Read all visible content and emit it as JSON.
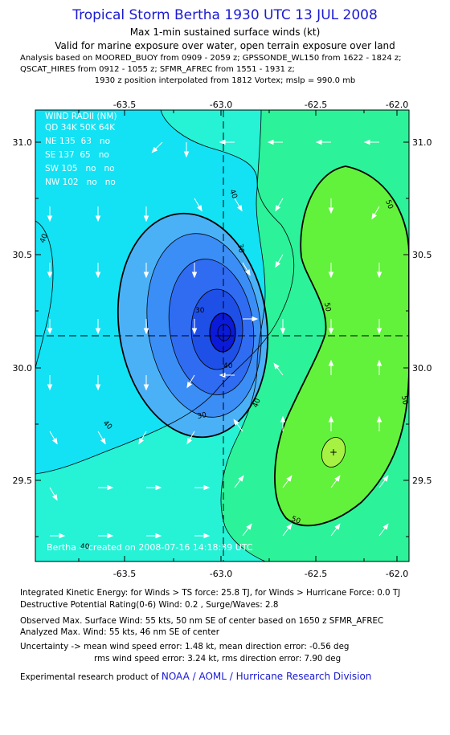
{
  "header": {
    "title": "Tropical Storm Bertha 1930 UTC 13 JUL 2008",
    "subtitle1": "Max 1-min sustained surface winds (kt)",
    "subtitle2": "Valid for marine exposure over water, open terrain exposure over land",
    "analysis1": "Analysis based on  MOORED_BUOY from 0909 - 2059 z;  GPSSONDE_WL150 from 1622 - 1824 z;",
    "analysis2": "QSCAT_HIRES from 0912 - 1055 z;  SFMR_AFREC from 1551 - 1931 z;",
    "analysis3": "1930 z position interpolated from 1812 Vortex; mslp = 990.0 mb"
  },
  "map": {
    "lon_ticks": [
      "-63.5",
      "-63.0",
      "-62.5",
      "-62.0"
    ],
    "lat_ticks": [
      "31.0",
      "30.5",
      "30.0",
      "29.5"
    ],
    "center": {
      "lon": -62.97,
      "lat": 30.15
    },
    "max_wind_mark": {
      "lon": -62.36,
      "lat": 29.62
    },
    "contour_labels": [
      "40",
      "30",
      "40",
      "30",
      "40",
      "50",
      "50",
      "50",
      "30",
      "40",
      "50",
      "40",
      "40"
    ],
    "colors": {
      "lt20": "#0a1ad8",
      "b20_25": "#2f6cf2",
      "b25_30": "#3b8ef5",
      "b30_35": "#4bb1f7",
      "b35_40": "#12e2f4",
      "b40_45": "#26f2d6",
      "b45_50": "#2cf29a",
      "b50_55": "#62f23c",
      "b55_60": "#a6f242"
    },
    "wind_radii": {
      "title": "WIND RADII (NM)",
      "header": "QD 34K 50K 64K",
      "rows": [
        "NE 135  63   no",
        "SE 137  65   no",
        "SW 105   no   no",
        "NW 102   no   no"
      ]
    },
    "credit": "Bertha -- created on 2008-07-16 14:18:39 UTC"
  },
  "footer": {
    "ike": "Integrated Kinetic Energy:  for Winds > TS force: 25.8 TJ,  for Winds > Hurricane Force: 0.0 TJ",
    "dpr": "Destructive Potential Rating(0-6)   Wind: 0.2 , Surge/Waves: 2.8",
    "obs": "Observed Max. Surface Wind: 55 kts, 50 nm SE of center based on 1650 z SFMR_AFREC",
    "ana": "Analyzed Max. Wind: 55 kts, 46 nm SE of center",
    "unc1": "Uncertainty -> mean wind speed error: 1.48 kt,   mean direction error:  -0.56 deg",
    "unc2": "rms wind speed error: 3.24 kt,   rms direction error: 7.90 deg",
    "product_prefix": "Experimental research product of ",
    "product_org": "NOAA / AOML / Hurricane Research Division"
  }
}
